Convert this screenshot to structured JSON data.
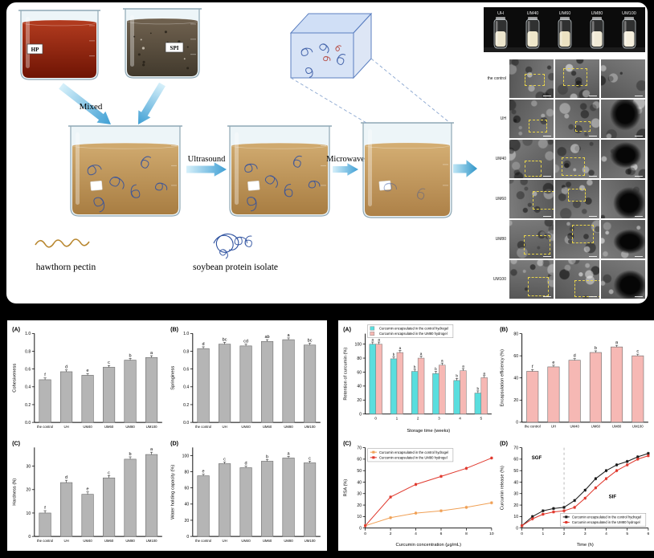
{
  "process": {
    "beaker_hp_label": "HP",
    "beaker_spi_label": "SPI",
    "step_mixed": "Mixed",
    "step_ultrasound": "Ultrasound",
    "step_microwave": "Microwave",
    "legend_pectin": "hawthorn pectin",
    "legend_spi": "soybean protein isolate"
  },
  "photos": {
    "vial_labels": [
      "UH",
      "UM40",
      "UM60",
      "UM80",
      "UM100"
    ],
    "sem_rows": [
      "the control",
      "UH",
      "UM40",
      "UM60",
      "UM80",
      "UM100"
    ]
  },
  "chart_data": [
    {
      "panel": "left",
      "tag": "(A)",
      "type": "bar",
      "ylabel": "Cohesiveness",
      "categories": [
        "the control",
        "UH",
        "UM40",
        "UM60",
        "UM80",
        "UM100"
      ],
      "values": [
        0.48,
        0.57,
        0.53,
        0.62,
        0.7,
        0.73
      ],
      "letters": [
        "f",
        "d",
        "e",
        "c",
        "b",
        "a"
      ],
      "err": 0.02,
      "ylim": [
        0,
        1.0
      ],
      "ystep": 0.2
    },
    {
      "panel": "left",
      "tag": "(B)",
      "type": "bar",
      "ylabel": "Springiness",
      "categories": [
        "the control",
        "UH",
        "UM40",
        "UM60",
        "UM80",
        "UM100"
      ],
      "values": [
        0.83,
        0.88,
        0.86,
        0.91,
        0.93,
        0.87
      ],
      "letters": [
        "d",
        "bc",
        "cd",
        "ab",
        "a",
        "bc"
      ],
      "err": 0.02,
      "ylim": [
        0,
        1.0
      ],
      "ystep": 0.2
    },
    {
      "panel": "left",
      "tag": "(C)",
      "type": "bar",
      "ylabel": "Hardness (N)",
      "categories": [
        "the control",
        "UH",
        "UM40",
        "UM60",
        "UM80",
        "UM100"
      ],
      "values": [
        10,
        23,
        18,
        25,
        33,
        35
      ],
      "letters": [
        "f",
        "d",
        "e",
        "c",
        "b",
        "a"
      ],
      "err": 1,
      "ylim": [
        0,
        38
      ],
      "ystep": 10
    },
    {
      "panel": "left",
      "tag": "(D)",
      "type": "bar",
      "ylabel": "Water holding capacity (%)",
      "categories": [
        "the control",
        "UH",
        "UM40",
        "UM60",
        "UM80",
        "UM100"
      ],
      "values": [
        75,
        90,
        85,
        93,
        97,
        91
      ],
      "letters": [
        "e",
        "c",
        "d",
        "b",
        "a",
        "c"
      ],
      "err": 2,
      "ylim": [
        0,
        110
      ],
      "ystep": 20
    },
    {
      "panel": "right",
      "tag": "(A)",
      "type": "groupedbar",
      "ylabel": "Retention of curcumin (%)",
      "xlabel": "Storage time (weeks)",
      "categories": [
        "0",
        "1",
        "2",
        "3",
        "4",
        "5"
      ],
      "series": [
        {
          "name": "Curcumin encapsulated in the control hydrogel",
          "color": "#59dede",
          "values": [
            100,
            79,
            61,
            58,
            48,
            30
          ],
          "letters": [
            "a",
            "b",
            "b",
            "b",
            "b",
            "b"
          ]
        },
        {
          "name": "Curcumin encapsulated in the UM80 hydrogel",
          "color": "#f6b8b4",
          "values": [
            100,
            88,
            80,
            70,
            62,
            52
          ],
          "letters": [
            "a",
            "a",
            "a",
            "a",
            "a",
            "a"
          ]
        }
      ],
      "err": 3,
      "ylim": [
        0,
        115
      ],
      "ystep": 20,
      "legend": "top-left"
    },
    {
      "panel": "right",
      "tag": "(B)",
      "type": "bar",
      "ylabel": "Encapsulation efficiency (%)",
      "categories": [
        "the control",
        "UH",
        "UM40",
        "UM60",
        "UM80",
        "UM100"
      ],
      "values": [
        46,
        50,
        56,
        63,
        68,
        60
      ],
      "letters": [
        "f",
        "e",
        "d",
        "b",
        "a",
        "c"
      ],
      "err": 1.5,
      "ylim": [
        0,
        80
      ],
      "ystep": 20,
      "color": "#f6b8b4"
    },
    {
      "panel": "right",
      "tag": "(C)",
      "type": "line",
      "ylabel": "RSA (%)",
      "xlabel": "Curcumin concentration (μg/mL)",
      "x": [
        0,
        2,
        4,
        6,
        8,
        10
      ],
      "xstep": 2,
      "series": [
        {
          "name": "Curcumin encapsulated in the control hydrogel",
          "color": "#f0a055",
          "values": [
            2,
            9,
            13,
            15,
            18,
            22
          ]
        },
        {
          "name": "Curcumin encapsulated in the UM80 hydrogel",
          "color": "#e0392e",
          "values": [
            2,
            27,
            38,
            45,
            52,
            61
          ]
        }
      ],
      "err": 1.5,
      "ylim": [
        0,
        70
      ],
      "ystep": 10,
      "legend": "top-left"
    },
    {
      "panel": "right",
      "tag": "(D)",
      "type": "line",
      "ylabel": "Curcumin release (%)",
      "xlabel": "Time (h)",
      "x": [
        0,
        0.5,
        1,
        1.5,
        2,
        2.5,
        3,
        3.5,
        4,
        4.5,
        5,
        5.5,
        6
      ],
      "xstep": 1,
      "series": [
        {
          "name": "Curcumin encapsulated in the control hydrogel",
          "color": "#1a1a1a",
          "values": [
            2,
            10,
            15,
            17,
            18,
            24,
            33,
            43,
            50,
            55,
            58,
            62,
            65
          ]
        },
        {
          "name": "Curcumin encapsulated in the UM80 hydrogel",
          "color": "#e0392e",
          "values": [
            2,
            8,
            12,
            14,
            15,
            18,
            26,
            35,
            43,
            50,
            55,
            60,
            63
          ]
        }
      ],
      "err": 1.5,
      "ylim": [
        0,
        70
      ],
      "ystep": 10,
      "legend": "bottom-right",
      "annotations": [
        {
          "type": "vline",
          "x": 2
        },
        {
          "type": "text",
          "text": "SGF",
          "x": 0.7,
          "y": 60
        },
        {
          "type": "text",
          "text": "SIF",
          "x": 4.3,
          "y": 26
        }
      ]
    }
  ]
}
